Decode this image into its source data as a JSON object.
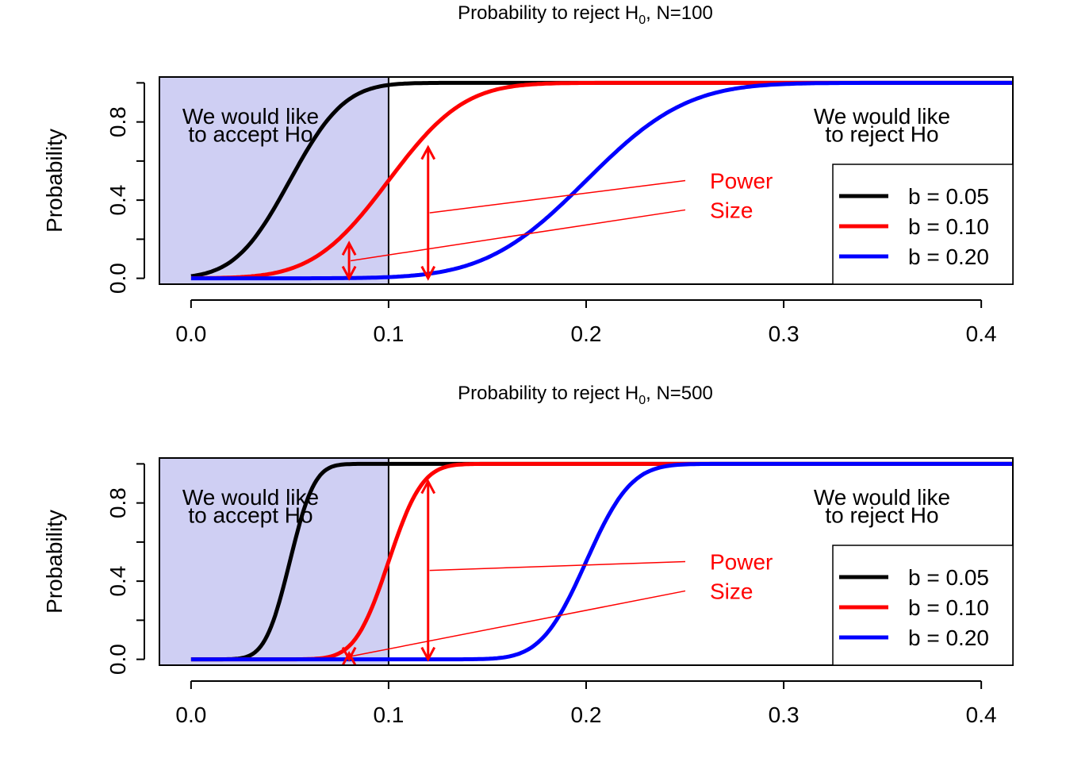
{
  "chart_data": [
    {
      "type": "line",
      "title": "Probability to reject H",
      "title_subscript": "0",
      "title_suffix": ", N=100",
      "xlabel": "",
      "ylabel": "Probability",
      "xlim": [
        -0.016,
        0.416
      ],
      "ylim": [
        -0.03,
        1.03
      ],
      "x_ticks": [
        "0.0",
        "0.1",
        "0.2",
        "0.3",
        "0.4"
      ],
      "y_ticks": [
        "0.0",
        "0.4",
        "0.8"
      ],
      "accept_region": {
        "x": [
          -0.016,
          0.1
        ],
        "color": "#cfcff3"
      },
      "critical_line_x": 0.1,
      "series": [
        {
          "name": "b = 0.05",
          "color": "#000000",
          "sd": 0.0218,
          "x": [
            0.0,
            0.02,
            0.03,
            0.04,
            0.05,
            0.06,
            0.07,
            0.08,
            0.1,
            0.12,
            0.15,
            0.2,
            0.3,
            0.416
          ],
          "y": [
            0.0,
            0.01,
            0.05,
            0.16,
            0.34,
            0.54,
            0.71,
            0.83,
            0.94,
            0.985,
            1.0,
            1.0,
            1.0,
            1.0
          ]
        },
        {
          "name": "b = 0.10",
          "color": "#ff0000",
          "sd": 0.03,
          "x": [
            0.0,
            0.04,
            0.06,
            0.08,
            0.1,
            0.12,
            0.14,
            0.16,
            0.18,
            0.2,
            0.25,
            0.3,
            0.416
          ],
          "y": [
            0.0,
            0.0,
            0.03,
            0.18,
            0.41,
            0.65,
            0.84,
            0.94,
            0.98,
            0.995,
            1.0,
            1.0,
            1.0
          ]
        },
        {
          "name": "b = 0.20",
          "color": "#0000ff",
          "sd": 0.04,
          "x": [
            0.0,
            0.08,
            0.12,
            0.14,
            0.16,
            0.18,
            0.2,
            0.22,
            0.24,
            0.26,
            0.3,
            0.35,
            0.416
          ],
          "y": [
            0.0,
            0.0,
            0.01,
            0.04,
            0.11,
            0.24,
            0.43,
            0.63,
            0.8,
            0.91,
            0.985,
            1.0,
            1.0
          ]
        }
      ],
      "power_arrow": {
        "x": 0.12,
        "y": [
          0.0,
          0.67
        ]
      },
      "size_arrow": {
        "x": 0.08,
        "y": [
          0.0,
          0.18
        ]
      },
      "annotations": {
        "accept": [
          "We would like",
          "to accept Ho"
        ],
        "reject": [
          "We would like",
          "to reject Ho"
        ],
        "power": "Power",
        "size": "Size"
      },
      "legend": {
        "position": "bottom-right"
      }
    },
    {
      "type": "line",
      "title": "Probability to reject H",
      "title_subscript": "0",
      "title_suffix": ", N=500",
      "xlabel": "",
      "ylabel": "Probability",
      "xlim": [
        -0.016,
        0.416
      ],
      "ylim": [
        -0.03,
        1.03
      ],
      "x_ticks": [
        "0.0",
        "0.1",
        "0.2",
        "0.3",
        "0.4"
      ],
      "y_ticks": [
        "0.0",
        "0.4",
        "0.8"
      ],
      "accept_region": {
        "x": [
          -0.016,
          0.1
        ],
        "color": "#cfcff3"
      },
      "critical_line_x": 0.1,
      "series": [
        {
          "name": "b = 0.05",
          "color": "#000000",
          "sd": 0.0098,
          "x": [
            0.0,
            0.03,
            0.04,
            0.045,
            0.05,
            0.055,
            0.06,
            0.07,
            0.08,
            0.1,
            0.2,
            0.416
          ],
          "y": [
            0.0,
            0.0,
            0.1,
            0.27,
            0.5,
            0.72,
            0.86,
            0.98,
            1.0,
            1.0,
            1.0,
            1.0
          ]
        },
        {
          "name": "b = 0.10",
          "color": "#ff0000",
          "sd": 0.0134,
          "x": [
            0.0,
            0.06,
            0.08,
            0.09,
            0.1,
            0.11,
            0.12,
            0.13,
            0.14,
            0.16,
            0.25,
            0.416
          ],
          "y": [
            0.0,
            0.0,
            0.02,
            0.17,
            0.46,
            0.75,
            0.91,
            0.98,
            0.995,
            1.0,
            1.0,
            1.0
          ]
        },
        {
          "name": "b = 0.20",
          "color": "#0000ff",
          "sd": 0.0179,
          "x": [
            0.0,
            0.15,
            0.17,
            0.18,
            0.19,
            0.2,
            0.21,
            0.22,
            0.23,
            0.25,
            0.3,
            0.416
          ],
          "y": [
            0.0,
            0.0,
            0.05,
            0.14,
            0.3,
            0.5,
            0.7,
            0.86,
            0.95,
            0.99,
            1.0,
            1.0
          ]
        }
      ],
      "power_arrow": {
        "x": 0.12,
        "y": [
          0.0,
          0.91
        ]
      },
      "size_arrow": {
        "x": 0.08,
        "y": [
          0.0,
          0.03
        ]
      },
      "annotations": {
        "accept": [
          "We would like",
          "to accept Ho"
        ],
        "reject": [
          "We would like",
          "to reject Ho"
        ],
        "power": "Power",
        "size": "Size"
      },
      "legend": {
        "position": "bottom-right"
      }
    }
  ]
}
